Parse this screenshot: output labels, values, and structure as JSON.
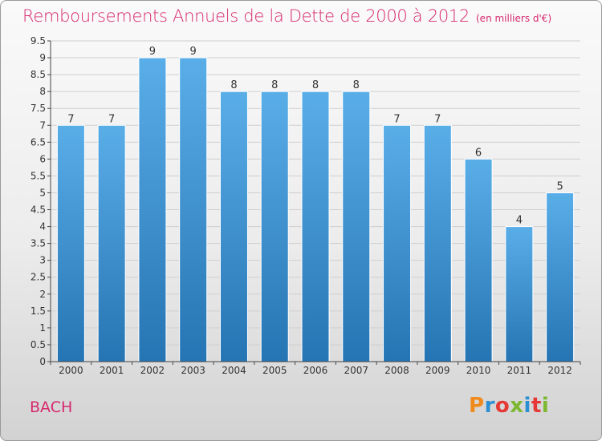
{
  "header": {
    "title": "Remboursements Annuels de la Dette de 2000 à 2012",
    "subtitle": "(en milliers d'€)"
  },
  "footer": {
    "commune": "BACH",
    "brand": "Proxiti",
    "brand_colors": [
      "#f08a1c",
      "#2a8fd3",
      "#e53935",
      "#7cb82f",
      "#2a8fd3",
      "#e53935",
      "#7cb82f"
    ]
  },
  "colors": {
    "title": "#d6286e",
    "bar_top": "#5aaee8",
    "bar_bottom": "#2574b3",
    "axis": "#444444",
    "grid": "#cfcfcf"
  },
  "chart_data": {
    "type": "bar",
    "title": "Remboursements Annuels de la Dette de 2000 à 2012",
    "subtitle": "(en milliers d'€)",
    "xlabel": "",
    "ylabel": "",
    "categories": [
      "2000",
      "2001",
      "2002",
      "2003",
      "2004",
      "2005",
      "2006",
      "2007",
      "2008",
      "2009",
      "2010",
      "2011",
      "2012"
    ],
    "values": [
      7,
      7,
      9,
      9,
      8,
      8,
      8,
      8,
      7,
      7,
      6,
      4,
      5
    ],
    "data_labels": [
      "7",
      "7",
      "9",
      "9",
      "8",
      "8",
      "8",
      "8",
      "7",
      "7",
      "6",
      "4",
      "5"
    ],
    "ylim": [
      0,
      9.5
    ],
    "yticks": [
      0,
      0.5,
      1,
      1.5,
      2,
      2.5,
      3,
      3.5,
      4,
      4.5,
      5,
      5.5,
      6,
      6.5,
      7,
      7.5,
      8,
      8.5,
      9,
      9.5
    ],
    "ytick_labels": [
      "0",
      "0.5",
      "1",
      "1.5",
      "2",
      "2.5",
      "3",
      "3.5",
      "4",
      "4.5",
      "5",
      "5.5",
      "6",
      "6.5",
      "7",
      "7.5",
      "8",
      "8.5",
      "9",
      "9.5"
    ],
    "grid": true,
    "legend": "none"
  }
}
